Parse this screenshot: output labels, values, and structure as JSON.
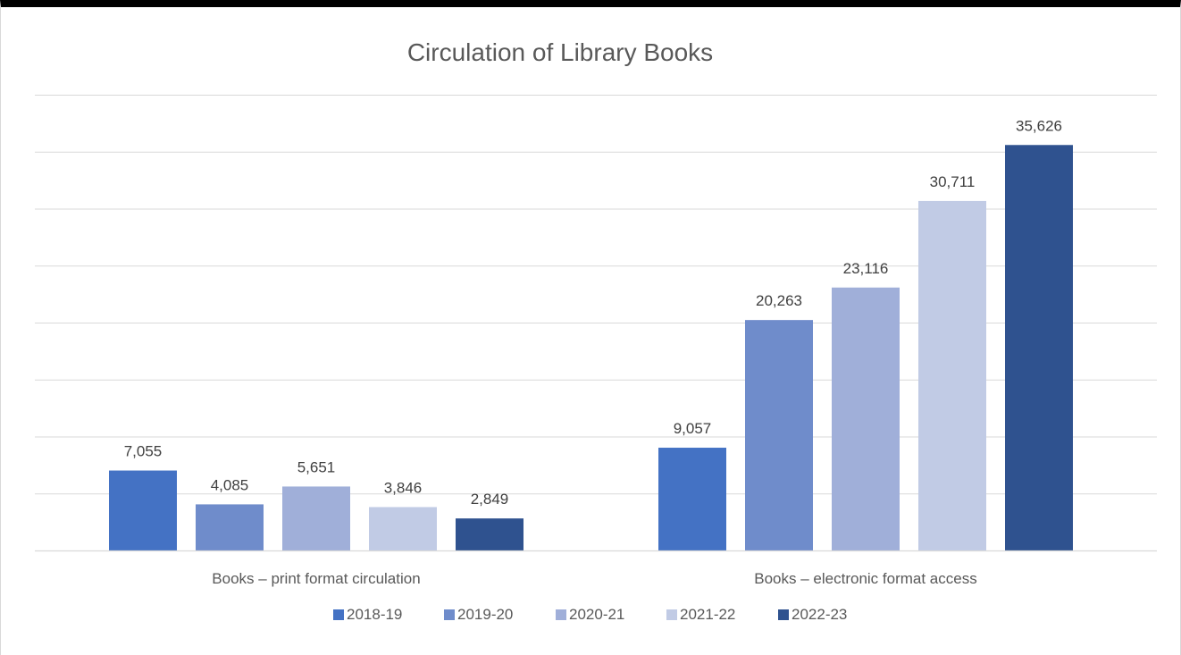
{
  "chart_data": {
    "type": "bar",
    "title": "Circulation of Library Books",
    "categories": [
      "Books – print format circulation",
      "Books – electronic format access"
    ],
    "series": [
      {
        "name": "2018-19",
        "color": "#4472c4",
        "values": [
          7055,
          9057
        ],
        "labels": [
          "7,055",
          "9,057"
        ]
      },
      {
        "name": "2019-20",
        "color": "#6f8ccb",
        "values": [
          4085,
          20263
        ],
        "labels": [
          "4,085",
          "20,263"
        ]
      },
      {
        "name": "2020-21",
        "color": "#a0afd9",
        "values": [
          5651,
          23116
        ],
        "labels": [
          "5,651",
          "23,116"
        ]
      },
      {
        "name": "2021-22",
        "color": "#c1cbe5",
        "values": [
          3846,
          30711
        ],
        "labels": [
          "3,846",
          "30,711"
        ]
      },
      {
        "name": "2022-23",
        "color": "#2f528f",
        "values": [
          2849,
          35626
        ],
        "labels": [
          "2,849",
          "35,626"
        ]
      }
    ],
    "ylim": [
      0,
      40000
    ],
    "ytick_step": 5000,
    "show_y_tick_labels": false,
    "grid": true,
    "legend_position": "bottom"
  }
}
